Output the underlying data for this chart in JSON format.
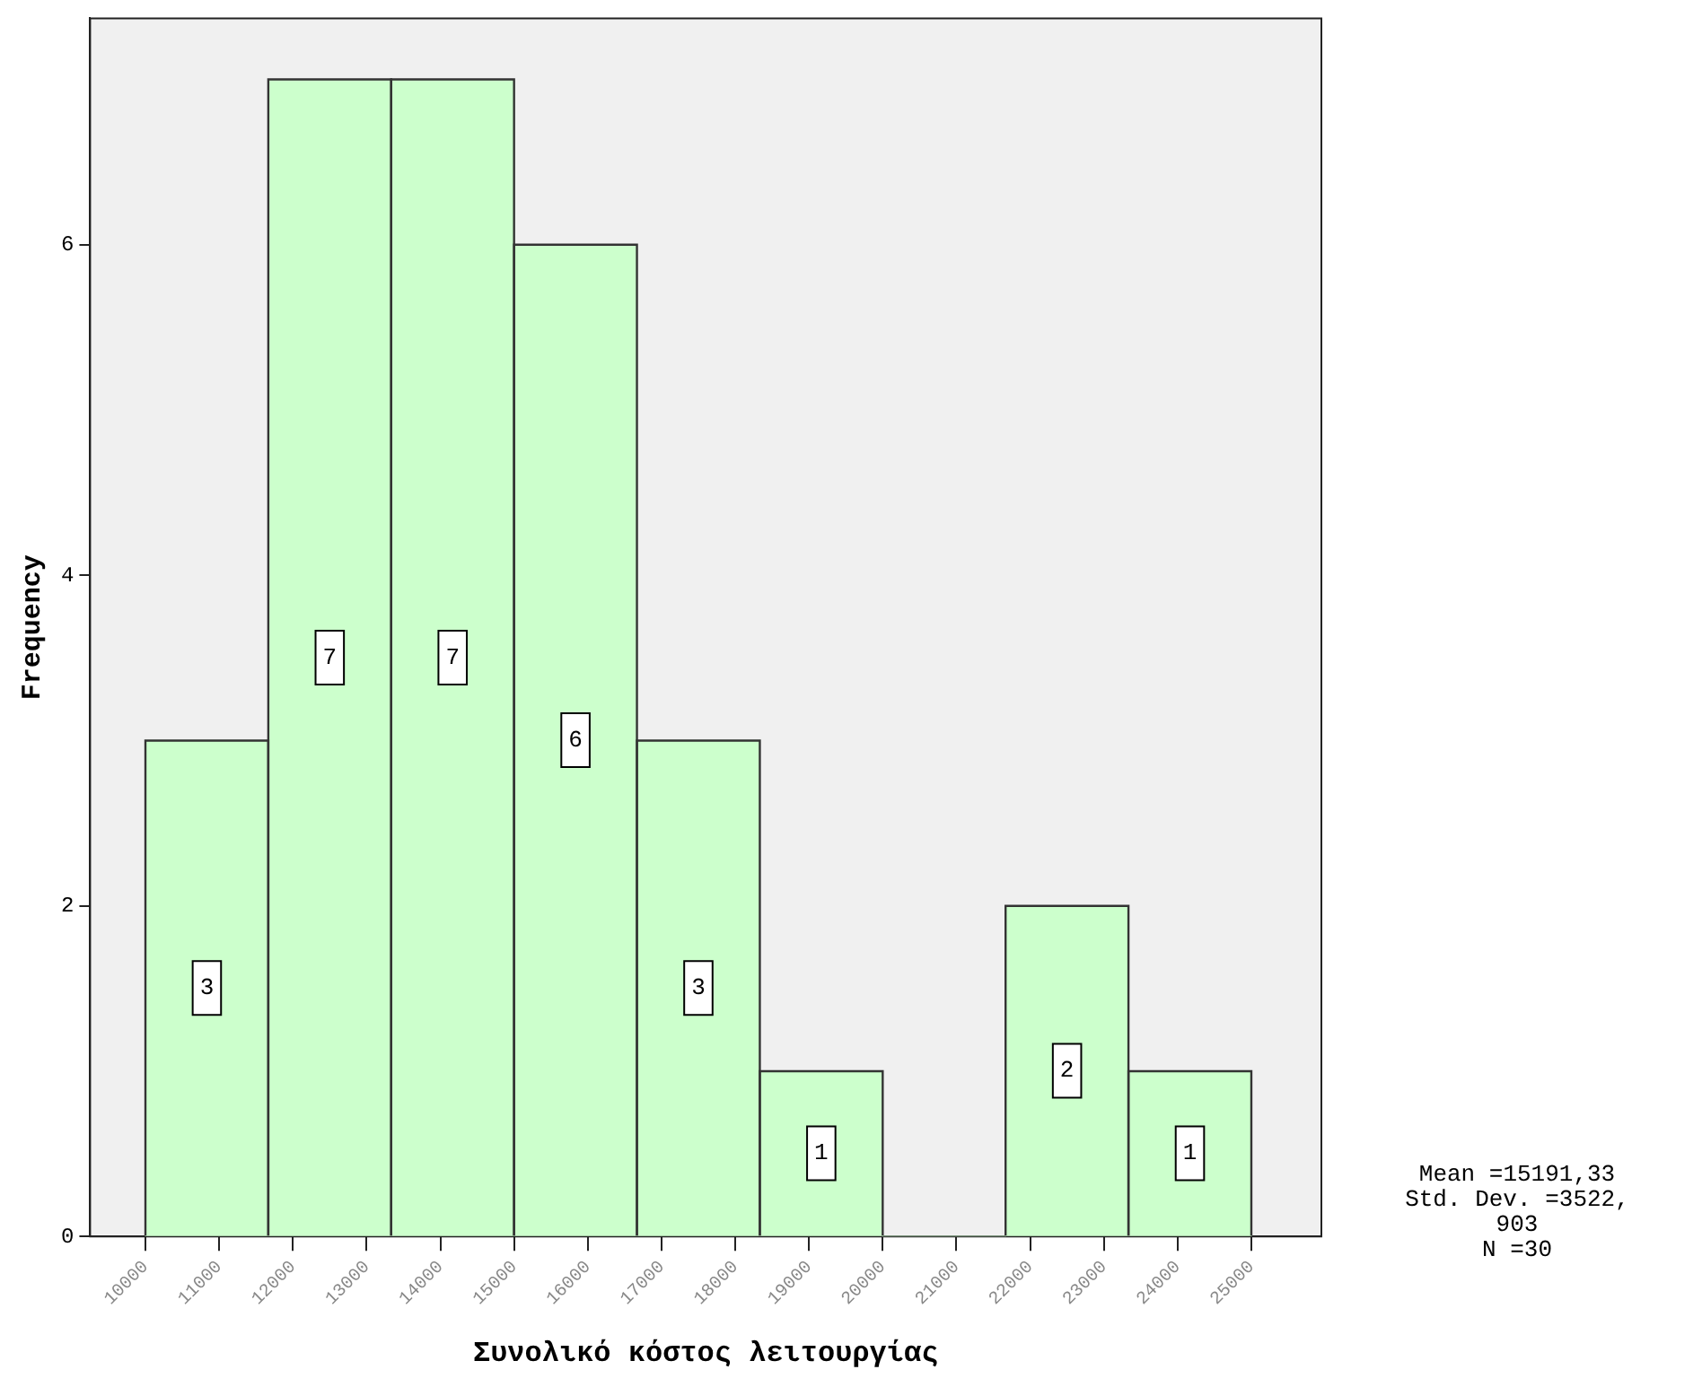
{
  "chart_data": {
    "type": "histogram",
    "xlabel": "Συνολικό κόστος λειτουργίας",
    "ylabel": "Frequency",
    "bins": [
      10000,
      11666.67,
      13333.33,
      15000,
      16666.67,
      18333.33,
      20000,
      21666.67,
      23333.33,
      25000
    ],
    "values": [
      3,
      7,
      7,
      6,
      3,
      1,
      0,
      2,
      1
    ],
    "value_labels": [
      "3",
      "7",
      "7",
      "6",
      "3",
      "1",
      null,
      "2",
      "1"
    ],
    "color": "#ccffcc",
    "xlim": [
      9250,
      25950
    ],
    "xticks": [
      10000,
      11000,
      12000,
      13000,
      14000,
      15000,
      16000,
      17000,
      18000,
      19000,
      20000,
      21000,
      22000,
      23000,
      24000,
      25000
    ],
    "ylim": [
      0,
      7.37
    ],
    "yticks": [
      0,
      2,
      4,
      6
    ],
    "grid": false,
    "annotations": [
      "Mean =15191,33\nStd. Dev. =3522,903\nN =30"
    ]
  }
}
